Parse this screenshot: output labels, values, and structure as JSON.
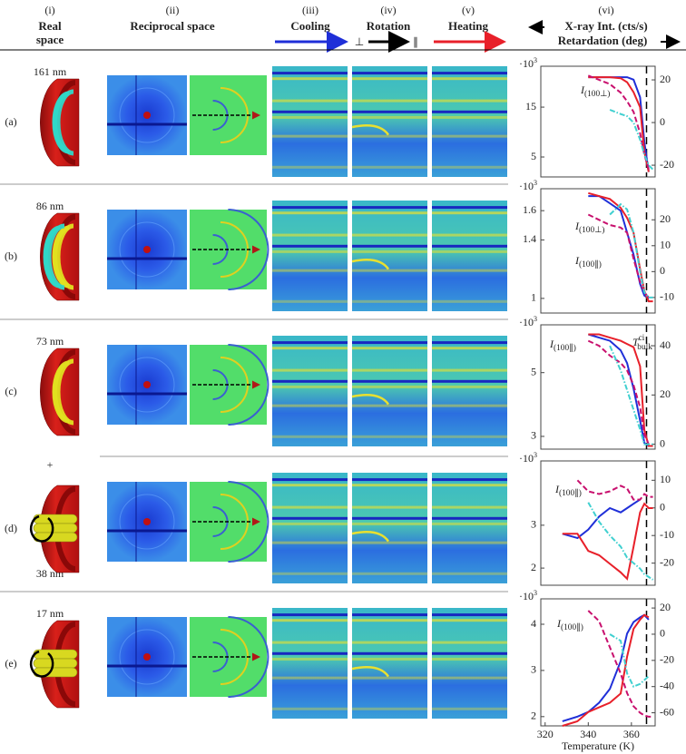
{
  "header": {
    "columns": [
      {
        "index": "(i)",
        "title": [
          "Real",
          "space"
        ]
      },
      {
        "index": "(ii)",
        "title": [
          "Reciprocal space"
        ]
      },
      {
        "index": "(iii)",
        "title": [
          "Cooling"
        ]
      },
      {
        "index": "(iv)",
        "title": [
          "Rotation"
        ],
        "symbols": [
          "⊥",
          "∥"
        ]
      },
      {
        "index": "(v)",
        "title": [
          "Heating"
        ]
      },
      {
        "index": "(vi)",
        "title": [
          "X-ray Int. (cts/s)",
          "Retardation (deg)"
        ]
      }
    ]
  },
  "rows": [
    {
      "label": "(a)",
      "size": "161 nm"
    },
    {
      "label": "(b)",
      "size": "86 nm"
    },
    {
      "label": "(c)",
      "size": "73 nm"
    },
    {
      "label": "(d)",
      "note": "+",
      "size": "38 nm"
    },
    {
      "label": "(e)",
      "size": "17 nm"
    }
  ],
  "chart_data": [
    {
      "type": "line",
      "y_multiplier": {
        "text": "·10",
        "sup": "3"
      },
      "xlim": [
        318,
        371
      ],
      "ylim": [
        1,
        23.2
      ],
      "yticks": [
        5,
        15
      ],
      "y2lim": [
        -25.5,
        26.4
      ],
      "y2ticks": [
        -20,
        0,
        20
      ],
      "vline": 367,
      "annotations": [
        {
          "text": "I",
          "sub": "(100⊥)"
        }
      ],
      "x": [
        328,
        335,
        340,
        345,
        350,
        355,
        358,
        361,
        364,
        366,
        368,
        370
      ],
      "series": [
        {
          "color": "#1f2fd8",
          "style": "solid",
          "values": [
            null,
            null,
            21,
            21,
            21,
            21,
            21,
            20.5,
            17,
            8,
            2,
            null
          ]
        },
        {
          "color": "#e8202a",
          "style": "solid",
          "values": [
            null,
            null,
            21,
            21,
            21,
            20.8,
            20,
            18,
            15,
            6,
            2,
            null
          ]
        },
        {
          "color": "#c8106e",
          "style": "dashed",
          "axis": "y2",
          "values": [
            null,
            null,
            22,
            20,
            18,
            14,
            10,
            5,
            -5,
            -15,
            -22,
            null
          ]
        },
        {
          "color": "#40d0d0",
          "style": "dashdot",
          "axis": "y2",
          "values": [
            null,
            null,
            null,
            null,
            6,
            4,
            3,
            0,
            -8,
            -15,
            -20,
            -22
          ]
        }
      ]
    },
    {
      "type": "line",
      "y_multiplier": {
        "text": "·10",
        "sup": "3"
      },
      "xlim": [
        318,
        371
      ],
      "ylim": [
        0.9,
        1.75
      ],
      "yticks": [
        1,
        1.4,
        1.6
      ],
      "y2lim": [
        -16,
        32
      ],
      "y2ticks": [
        -10,
        0,
        10,
        20
      ],
      "vline": 367,
      "annotations": [
        {
          "text": "I",
          "sub": "(100⊥)"
        },
        {
          "text": "I",
          "sub": "(100∥)"
        }
      ],
      "x": [
        328,
        335,
        340,
        345,
        350,
        355,
        358,
        361,
        364,
        366,
        368,
        370
      ],
      "series": [
        {
          "color": "#1f2fd8",
          "style": "solid",
          "values": [
            null,
            null,
            1.7,
            1.7,
            1.65,
            1.6,
            1.45,
            1.3,
            1.1,
            1.02,
            1.0,
            null
          ]
        },
        {
          "color": "#e8202a",
          "style": "solid",
          "values": [
            null,
            null,
            1.72,
            1.7,
            1.68,
            1.62,
            1.55,
            1.45,
            1.2,
            1.05,
            0.98,
            0.98
          ]
        },
        {
          "color": "#c8106e",
          "style": "dashed",
          "axis": "y2",
          "values": [
            null,
            null,
            22,
            20,
            18,
            17,
            15,
            5,
            -4,
            -8,
            -10,
            null
          ]
        },
        {
          "color": "#40d0d0",
          "style": "dashdot",
          "axis": "y2",
          "values": [
            null,
            null,
            null,
            null,
            22,
            26,
            24,
            15,
            0,
            -8,
            -10,
            -10
          ]
        }
      ]
    },
    {
      "type": "line",
      "y_multiplier": {
        "text": "·10",
        "sup": "3"
      },
      "xlim": [
        318,
        371
      ],
      "ylim": [
        2.6,
        6.5
      ],
      "yticks": [
        3,
        5
      ],
      "y2lim": [
        -2,
        48.5
      ],
      "y2ticks": [
        0,
        20,
        40
      ],
      "vline": 367,
      "annotations": [
        {
          "text": "I",
          "sub": "(100∥)"
        },
        {
          "text": "T",
          "sup": "ci",
          "sub": "bulk"
        }
      ],
      "x": [
        328,
        335,
        340,
        345,
        350,
        355,
        358,
        361,
        364,
        366,
        368,
        370
      ],
      "series": [
        {
          "color": "#1f2fd8",
          "style": "solid",
          "values": [
            null,
            null,
            6.2,
            6.1,
            6.0,
            5.7,
            5.3,
            4.5,
            3.5,
            2.8,
            2.7,
            null
          ]
        },
        {
          "color": "#e8202a",
          "style": "solid",
          "values": [
            null,
            null,
            6.2,
            6.2,
            6.1,
            6.0,
            5.9,
            5.8,
            5.2,
            3.2,
            2.7,
            2.7
          ]
        },
        {
          "color": "#c8106e",
          "style": "dashed",
          "axis": "y2",
          "values": [
            null,
            null,
            42,
            40,
            36,
            33,
            30,
            24,
            15,
            4,
            0,
            null
          ]
        },
        {
          "color": "#40d0d0",
          "style": "dashdot",
          "axis": "y2",
          "values": [
            null,
            null,
            null,
            null,
            40,
            30,
            22,
            14,
            6,
            0,
            0,
            0
          ]
        }
      ]
    },
    {
      "type": "line",
      "y_multiplier": {
        "text": "·10",
        "sup": "3"
      },
      "xlim": [
        318,
        371
      ],
      "ylim": [
        1.6,
        4.5
      ],
      "yticks": [
        2,
        3
      ],
      "y2lim": [
        -28,
        17
      ],
      "y2ticks": [
        -20,
        -10,
        0,
        10
      ],
      "vline": 367,
      "annotations": [
        {
          "text": "I",
          "sub": "(100∥)"
        }
      ],
      "x": [
        328,
        335,
        340,
        345,
        350,
        355,
        358,
        361,
        364,
        366,
        368,
        370
      ],
      "series": [
        {
          "color": "#1f2fd8",
          "style": "solid",
          "values": [
            2.8,
            2.7,
            2.9,
            3.2,
            3.4,
            3.3,
            3.4,
            3.5,
            3.6,
            null,
            null,
            null
          ]
        },
        {
          "color": "#e8202a",
          "style": "solid",
          "values": [
            2.8,
            2.8,
            2.4,
            2.3,
            2.1,
            1.9,
            1.75,
            2.5,
            3.3,
            3.5,
            3.4,
            3.4
          ]
        },
        {
          "color": "#c8106e",
          "style": "dashed",
          "axis": "y2",
          "values": [
            null,
            10,
            6,
            5,
            6,
            8,
            7,
            3,
            3,
            5,
            4,
            4
          ]
        },
        {
          "color": "#40d0d0",
          "style": "dashdot",
          "axis": "y2",
          "values": [
            null,
            null,
            2,
            -5,
            -10,
            -14,
            -18,
            -20,
            -22,
            -24,
            -25,
            -26
          ]
        }
      ]
    },
    {
      "type": "line",
      "y_multiplier": {
        "text": "·10",
        "sup": "3"
      },
      "xlim": [
        318,
        371
      ],
      "xticks": [
        320,
        340,
        360
      ],
      "xlabel": "Temperature (K)",
      "ylim": [
        1.8,
        4.55
      ],
      "yticks": [
        2,
        3,
        4
      ],
      "y2lim": [
        -70,
        27
      ],
      "y2ticks": [
        -60,
        -40,
        -20,
        0,
        20
      ],
      "vline": 367,
      "annotations": [
        {
          "text": "I",
          "sub": "(100∥)"
        }
      ],
      "x": [
        328,
        335,
        340,
        345,
        350,
        355,
        358,
        361,
        364,
        366,
        368,
        370
      ],
      "series": [
        {
          "color": "#1f2fd8",
          "style": "solid",
          "values": [
            1.9,
            2.0,
            2.1,
            2.3,
            2.6,
            3.2,
            3.8,
            4.05,
            4.15,
            4.2,
            4.1,
            null
          ]
        },
        {
          "color": "#e8202a",
          "style": "solid",
          "values": [
            1.8,
            1.9,
            2.1,
            2.2,
            2.3,
            2.5,
            3.3,
            3.9,
            4.1,
            4.2,
            4.15,
            null
          ]
        },
        {
          "color": "#c8106e",
          "style": "dashed",
          "axis": "y2",
          "values": [
            null,
            null,
            18,
            10,
            -10,
            -30,
            -45,
            -55,
            -60,
            -62,
            -63,
            -63
          ]
        },
        {
          "color": "#40d0d0",
          "style": "dashdot",
          "axis": "y2",
          "values": [
            null,
            null,
            null,
            null,
            0,
            -5,
            -30,
            -40,
            -38,
            -35,
            -32,
            null
          ]
        }
      ]
    }
  ]
}
